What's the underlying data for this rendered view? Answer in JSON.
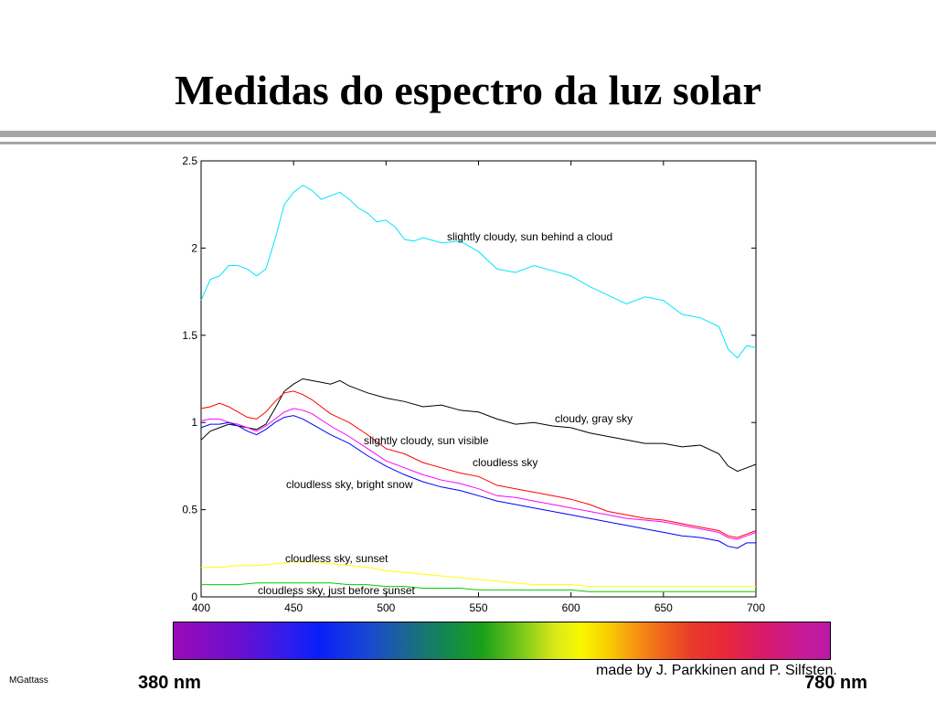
{
  "title": "Medidas do espectro da luz solar",
  "colors": {
    "rule": "#a6a6a6",
    "background": "#ffffff"
  },
  "chart_data": {
    "type": "line",
    "xlim": [
      400,
      700
    ],
    "ylim": [
      0,
      2.5
    ],
    "xticks": [
      400,
      450,
      500,
      550,
      600,
      650,
      700
    ],
    "yticks": [
      0,
      0.5,
      1,
      1.5,
      2,
      2.5
    ],
    "ytick_labels": [
      "0",
      "0.5",
      "1",
      "1.5",
      "2",
      "2.5"
    ],
    "grid": false,
    "series": [
      {
        "name": "slightly cloudy, sun behind a cloud",
        "color": "#00e5ff",
        "x": [
          400,
          405,
          410,
          415,
          420,
          425,
          430,
          435,
          440,
          445,
          450,
          455,
          460,
          465,
          470,
          475,
          480,
          485,
          490,
          495,
          500,
          505,
          510,
          515,
          520,
          530,
          540,
          550,
          560,
          570,
          580,
          590,
          600,
          610,
          620,
          630,
          640,
          650,
          660,
          670,
          680,
          685,
          690,
          695,
          700
        ],
        "y": [
          1.7,
          1.82,
          1.84,
          1.9,
          1.9,
          1.88,
          1.84,
          1.88,
          2.05,
          2.25,
          2.32,
          2.36,
          2.33,
          2.28,
          2.3,
          2.32,
          2.28,
          2.23,
          2.2,
          2.15,
          2.16,
          2.12,
          2.05,
          2.04,
          2.06,
          2.03,
          2.04,
          1.98,
          1.88,
          1.86,
          1.9,
          1.87,
          1.84,
          1.78,
          1.73,
          1.68,
          1.72,
          1.7,
          1.62,
          1.6,
          1.55,
          1.42,
          1.37,
          1.44,
          1.43
        ]
      },
      {
        "name": "cloudy, gray sky",
        "color": "#000000",
        "x": [
          400,
          405,
          410,
          415,
          420,
          425,
          430,
          435,
          440,
          445,
          450,
          455,
          460,
          465,
          470,
          475,
          480,
          490,
          500,
          510,
          520,
          530,
          540,
          550,
          560,
          570,
          580,
          590,
          600,
          610,
          620,
          630,
          640,
          650,
          660,
          670,
          680,
          685,
          690,
          695,
          700
        ],
        "y": [
          0.9,
          0.95,
          0.97,
          0.99,
          0.98,
          0.97,
          0.96,
          0.99,
          1.08,
          1.18,
          1.22,
          1.25,
          1.24,
          1.23,
          1.22,
          1.24,
          1.21,
          1.17,
          1.14,
          1.12,
          1.09,
          1.1,
          1.07,
          1.06,
          1.02,
          0.99,
          1.0,
          0.98,
          0.97,
          0.94,
          0.92,
          0.9,
          0.88,
          0.88,
          0.86,
          0.87,
          0.82,
          0.75,
          0.72,
          0.74,
          0.76
        ]
      },
      {
        "name": "slightly cloudy, sun visible",
        "color": "#ff0000",
        "x": [
          400,
          405,
          410,
          415,
          420,
          425,
          430,
          435,
          440,
          445,
          450,
          455,
          460,
          470,
          480,
          490,
          500,
          510,
          520,
          530,
          540,
          550,
          560,
          570,
          580,
          590,
          600,
          610,
          620,
          630,
          640,
          650,
          660,
          670,
          680,
          685,
          690,
          695,
          700
        ],
        "y": [
          1.08,
          1.09,
          1.11,
          1.09,
          1.06,
          1.03,
          1.02,
          1.06,
          1.12,
          1.17,
          1.18,
          1.16,
          1.13,
          1.05,
          1.0,
          0.93,
          0.85,
          0.82,
          0.77,
          0.74,
          0.71,
          0.69,
          0.64,
          0.62,
          0.6,
          0.58,
          0.56,
          0.53,
          0.49,
          0.47,
          0.45,
          0.44,
          0.42,
          0.4,
          0.38,
          0.35,
          0.34,
          0.36,
          0.38
        ]
      },
      {
        "name": "cloudless sky",
        "color": "#ff00ff",
        "x": [
          400,
          405,
          410,
          415,
          420,
          425,
          430,
          435,
          440,
          445,
          450,
          455,
          460,
          470,
          480,
          490,
          500,
          510,
          520,
          530,
          540,
          550,
          560,
          570,
          580,
          590,
          600,
          610,
          620,
          630,
          640,
          650,
          660,
          670,
          680,
          685,
          690,
          695,
          700
        ],
        "y": [
          1.01,
          1.02,
          1.02,
          1.0,
          0.99,
          0.97,
          0.95,
          0.98,
          1.02,
          1.06,
          1.08,
          1.07,
          1.05,
          0.98,
          0.92,
          0.85,
          0.78,
          0.74,
          0.7,
          0.67,
          0.65,
          0.62,
          0.58,
          0.57,
          0.55,
          0.53,
          0.51,
          0.49,
          0.47,
          0.45,
          0.44,
          0.43,
          0.41,
          0.39,
          0.37,
          0.34,
          0.33,
          0.35,
          0.37
        ]
      },
      {
        "name": "cloudless sky, bright snow",
        "color": "#0000ff",
        "x": [
          400,
          405,
          410,
          415,
          420,
          425,
          430,
          435,
          440,
          445,
          450,
          455,
          460,
          470,
          480,
          490,
          500,
          510,
          520,
          530,
          540,
          550,
          560,
          570,
          580,
          590,
          600,
          610,
          620,
          630,
          640,
          650,
          660,
          670,
          680,
          685,
          690,
          695,
          700
        ],
        "y": [
          0.97,
          0.99,
          0.99,
          1.0,
          0.98,
          0.95,
          0.93,
          0.96,
          1.0,
          1.03,
          1.04,
          1.02,
          0.99,
          0.93,
          0.88,
          0.81,
          0.75,
          0.7,
          0.66,
          0.63,
          0.61,
          0.58,
          0.55,
          0.53,
          0.51,
          0.49,
          0.47,
          0.45,
          0.43,
          0.41,
          0.39,
          0.37,
          0.35,
          0.34,
          0.32,
          0.29,
          0.28,
          0.31,
          0.31
        ]
      },
      {
        "name": "cloudless sky, sunset",
        "color": "#ffff00",
        "x": [
          400,
          410,
          420,
          430,
          440,
          450,
          460,
          470,
          480,
          490,
          500,
          510,
          520,
          530,
          540,
          550,
          560,
          570,
          580,
          590,
          600,
          610,
          620,
          630,
          640,
          650,
          660,
          670,
          680,
          690,
          700
        ],
        "y": [
          0.17,
          0.17,
          0.18,
          0.18,
          0.19,
          0.2,
          0.2,
          0.19,
          0.18,
          0.17,
          0.15,
          0.14,
          0.13,
          0.12,
          0.11,
          0.1,
          0.09,
          0.08,
          0.07,
          0.07,
          0.07,
          0.06,
          0.06,
          0.06,
          0.06,
          0.06,
          0.06,
          0.06,
          0.06,
          0.06,
          0.06
        ]
      },
      {
        "name": "cloudless sky, just before sunset",
        "color": "#00cc00",
        "x": [
          400,
          410,
          420,
          430,
          440,
          450,
          460,
          470,
          480,
          490,
          500,
          510,
          520,
          530,
          540,
          550,
          560,
          570,
          580,
          590,
          600,
          610,
          620,
          630,
          640,
          650,
          660,
          670,
          680,
          690,
          700
        ],
        "y": [
          0.07,
          0.07,
          0.07,
          0.08,
          0.08,
          0.08,
          0.08,
          0.08,
          0.07,
          0.07,
          0.06,
          0.06,
          0.05,
          0.05,
          0.05,
          0.04,
          0.04,
          0.04,
          0.04,
          0.04,
          0.04,
          0.03,
          0.03,
          0.03,
          0.03,
          0.03,
          0.03,
          0.03,
          0.03,
          0.03,
          0.03
        ]
      }
    ]
  },
  "annotations": {
    "sun_behind_cloud": "slightly cloudy, sun behind a cloud",
    "gray_sky": "cloudy, gray sky",
    "sun_visible": "slightly cloudy, sun visible",
    "cloudless": "cloudless sky",
    "bright_snow": "cloudless sky, bright snow",
    "sunset": "cloudless sky, sunset",
    "before_sunset": "cloudless sky, just before sunset"
  },
  "spectrum_bar": {
    "left_label": "380 nm",
    "right_label": "780 nm"
  },
  "credit": "made by J. Parkkinen and P. Silfsten.",
  "author": "MGattass"
}
